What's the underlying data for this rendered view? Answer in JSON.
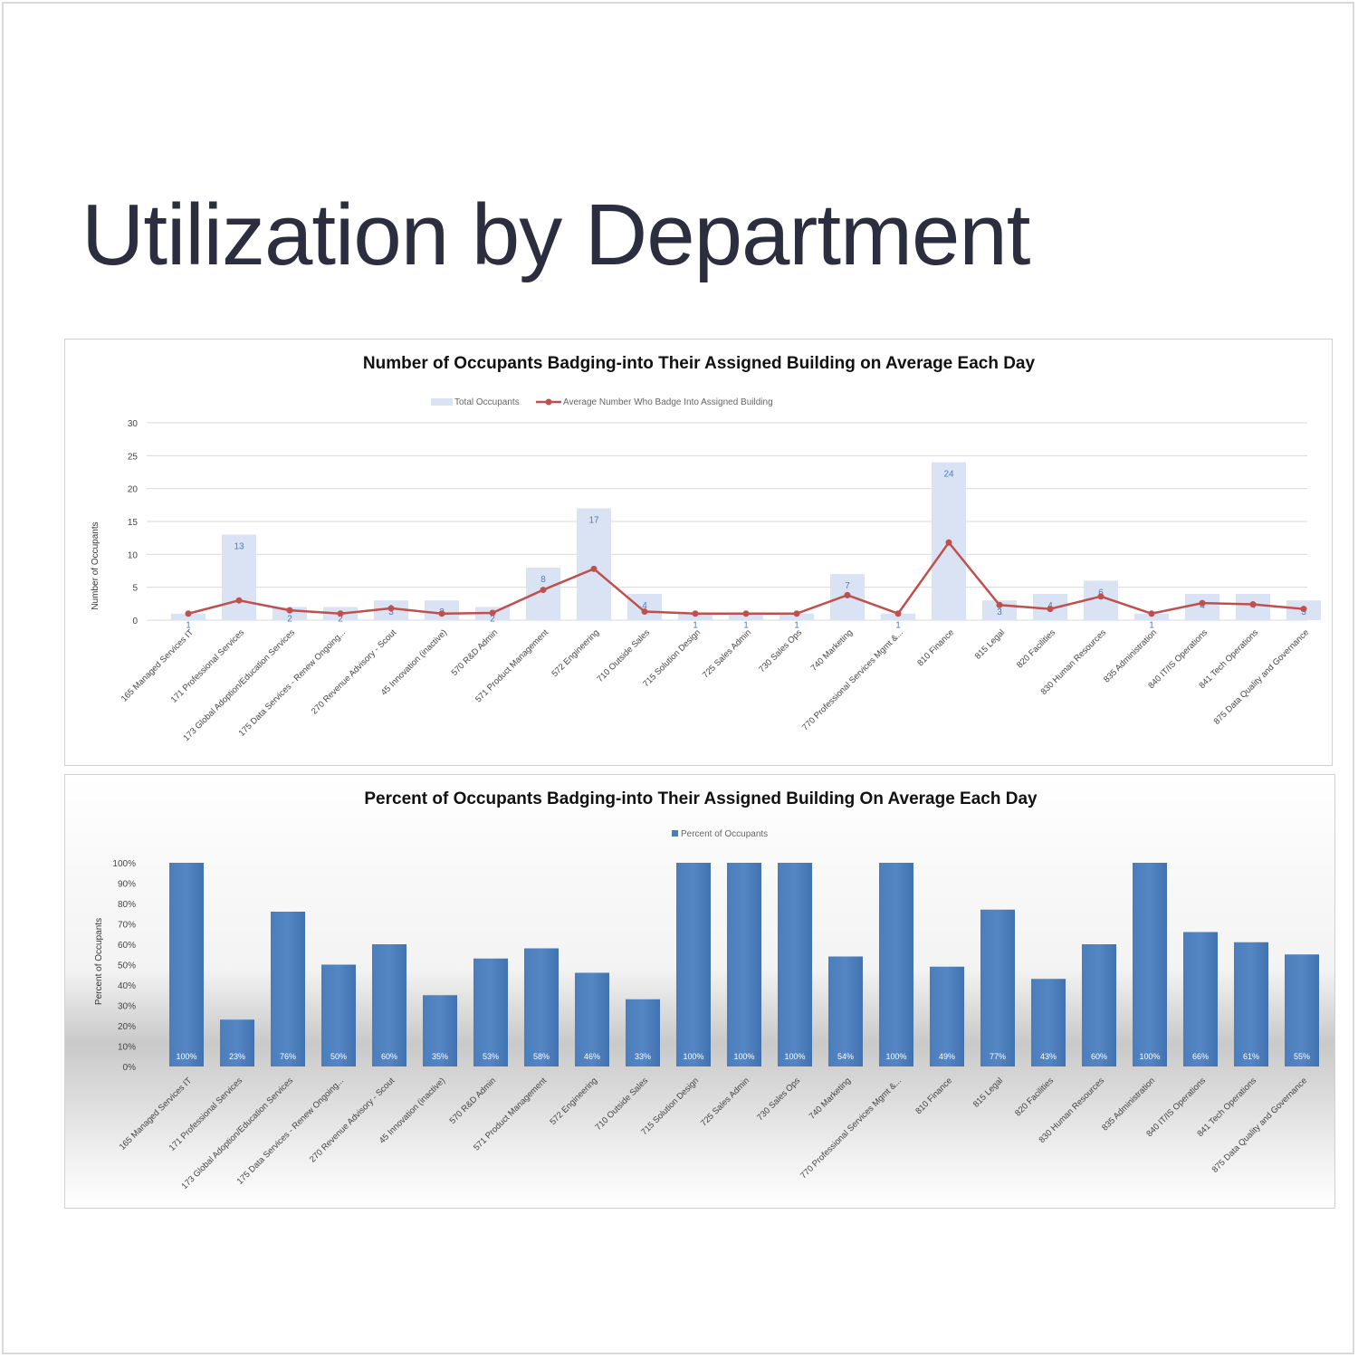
{
  "slide": {
    "title": "Utilization by Department"
  },
  "categories": [
    "165 Managed Services IT",
    "171 Professional Services",
    "173 Global Adoption/Education Services",
    "175 Data Services - Renew Ongoing...",
    "270 Revenue Advisory - Scout",
    "45 Innovation (inactive)",
    "570 R&D Admin",
    "571 Product Management",
    "572 Engineering",
    "710 Outside Sales",
    "715 Solution Design",
    "725 Sales Admin",
    "730 Sales Ops",
    "740 Marketing",
    "770 Professional Services Mgmt &...",
    "810 Finance",
    "815 Legal",
    "820 Facilities",
    "830 Human Resources",
    "835 Administration",
    "840 IT/IS Operations",
    "841 Tech Operations",
    "875 Data Quality and Governance"
  ],
  "chart_data": [
    {
      "type": "bar",
      "title": "Number of Occupants Badging-into Their Assigned Building on Average Each Day",
      "ylabel": "Number of Occupants",
      "xlabel": "",
      "ylim": [
        0,
        30
      ],
      "yticks": [
        0,
        5,
        10,
        15,
        20,
        25,
        30
      ],
      "ytick_labels": [
        "0",
        "5",
        "10",
        "15",
        "20",
        "25",
        "30"
      ],
      "grid": true,
      "legend": "top-center",
      "series": [
        {
          "name": "Total Occupants",
          "type": "bar",
          "color": "#dae3f3",
          "values": [
            1,
            13,
            2,
            2,
            3,
            3,
            2,
            8,
            17,
            4,
            1,
            1,
            1,
            7,
            1,
            24,
            3,
            4,
            6,
            1,
            4,
            4,
            3
          ],
          "labels": [
            "1",
            "13",
            "2",
            "2",
            "3",
            "3",
            "2",
            "8",
            "17",
            "4",
            "1",
            "1",
            "1",
            "7",
            "1",
            "24",
            "3",
            "4",
            "6",
            "1",
            "4",
            "4",
            "3"
          ]
        },
        {
          "name": "Average Number Who Badge Into Assigned Building",
          "type": "line",
          "color": "#c0504d",
          "values": [
            1.0,
            3.0,
            1.5,
            1.0,
            1.8,
            1.0,
            1.1,
            4.6,
            7.8,
            1.3,
            1.0,
            1.0,
            1.0,
            3.8,
            1.0,
            11.8,
            2.3,
            1.7,
            3.6,
            1.0,
            2.6,
            2.4,
            1.7
          ]
        }
      ]
    },
    {
      "type": "bar",
      "title": "Percent of Occupants Badging-into Their Assigned Building On Average Each Day",
      "ylabel": "Percent of Occupants",
      "xlabel": "",
      "ylim": [
        0,
        100
      ],
      "yticks": [
        0,
        10,
        20,
        30,
        40,
        50,
        60,
        70,
        80,
        90,
        100
      ],
      "ytick_labels": [
        "0%",
        "10%",
        "20%",
        "30%",
        "40%",
        "50%",
        "60%",
        "70%",
        "80%",
        "90%",
        "100%"
      ],
      "grid": false,
      "legend": "top-center",
      "series": [
        {
          "name": "Percent of Occupants",
          "type": "bar",
          "color": "#4a7ebb",
          "values": [
            100,
            23,
            76,
            50,
            60,
            35,
            53,
            58,
            46,
            33,
            100,
            100,
            100,
            54,
            100,
            49,
            77,
            43,
            60,
            100,
            66,
            61,
            55
          ],
          "labels": [
            "100%",
            "23%",
            "76%",
            "50%",
            "60%",
            "35%",
            "53%",
            "58%",
            "46%",
            "33%",
            "100%",
            "100%",
            "100%",
            "54%",
            "100%",
            "49%",
            "77%",
            "43%",
            "60%",
            "100%",
            "66%",
            "61%",
            "55%"
          ]
        }
      ]
    }
  ]
}
